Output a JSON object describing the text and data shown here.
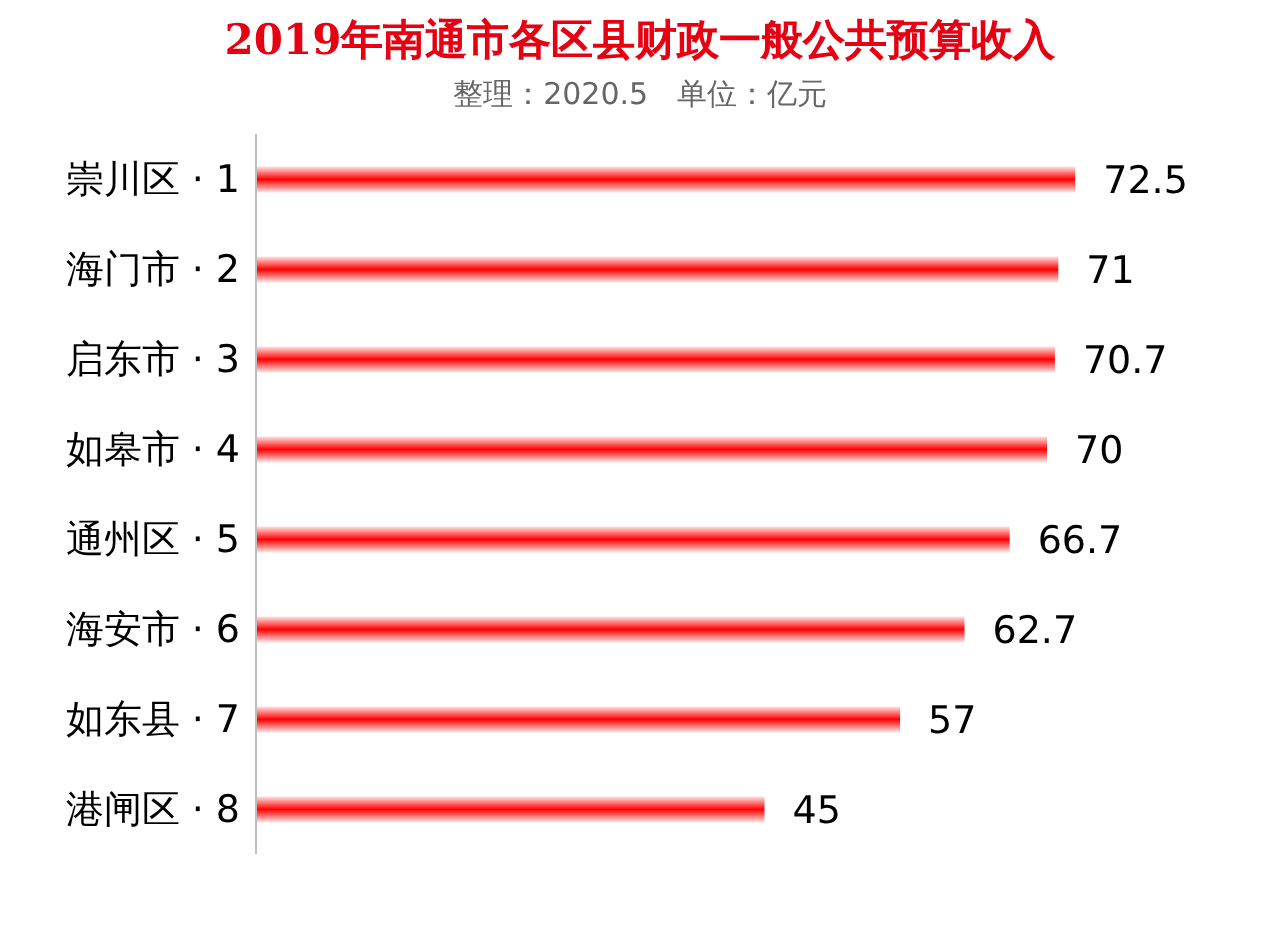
{
  "chart_data": {
    "type": "bar",
    "orientation": "horizontal",
    "title": "2019年南通市各区县财政一般公共预算收入",
    "subtitle": "整理：2020.5   单位：亿元",
    "categories": [
      "崇川区 · 1",
      "海门市 · 2",
      "启东市 · 3",
      "如皋市 · 4",
      "通州区 · 5",
      "海安市 · 6",
      "如东县 · 7",
      "港闸区 · 8"
    ],
    "values": [
      72.5,
      71,
      70.7,
      70,
      66.7,
      62.7,
      57,
      45
    ],
    "color": "#ff0000",
    "tick_labels": "y",
    "data_labels": true
  }
}
